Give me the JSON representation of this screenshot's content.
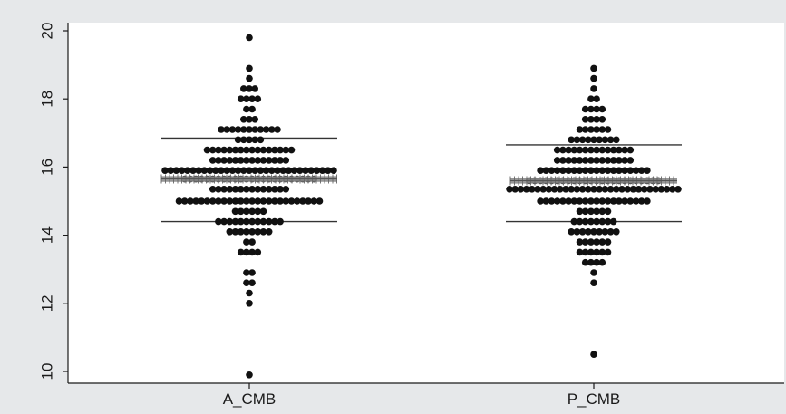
{
  "chart_data": {
    "type": "scatter",
    "subtype": "dot-strip-plot",
    "title": "",
    "xlabel": "",
    "ylabel": "",
    "categories": [
      "A_CMB",
      "P_CMB"
    ],
    "ylim": [
      9.8,
      20.3
    ],
    "yticks": [
      10,
      12,
      14,
      16,
      18,
      20
    ],
    "grid": false,
    "legend": "none",
    "colors": {
      "points": "#111111",
      "background": "#e6e8ea",
      "plot_area": "#ffffff",
      "reference_lines": "#333333",
      "median_band": "#8a8a8a"
    },
    "series": [
      {
        "category": "A_CMB",
        "point_rows": [
          {
            "y": 19.8,
            "n": 1
          },
          {
            "y": 18.9,
            "n": 1
          },
          {
            "y": 18.6,
            "n": 1
          },
          {
            "y": 18.3,
            "n": 3
          },
          {
            "y": 18.0,
            "n": 4
          },
          {
            "y": 17.7,
            "n": 2
          },
          {
            "y": 17.4,
            "n": 3
          },
          {
            "y": 17.1,
            "n": 11
          },
          {
            "y": 16.8,
            "n": 5
          },
          {
            "y": 16.5,
            "n": 16
          },
          {
            "y": 16.2,
            "n": 14
          },
          {
            "y": 15.9,
            "n": 31
          },
          {
            "y": 15.65,
            "n": 24
          },
          {
            "y": 15.35,
            "n": 14
          },
          {
            "y": 15.0,
            "n": 26
          },
          {
            "y": 14.7,
            "n": 6
          },
          {
            "y": 14.4,
            "n": 12
          },
          {
            "y": 14.1,
            "n": 8
          },
          {
            "y": 13.8,
            "n": 2
          },
          {
            "y": 13.5,
            "n": 4
          },
          {
            "y": 12.9,
            "n": 2
          },
          {
            "y": 12.6,
            "n": 2
          },
          {
            "y": 12.3,
            "n": 1
          },
          {
            "y": 12.0,
            "n": 1
          },
          {
            "y": 9.9,
            "n": 1
          }
        ],
        "upper_line": 16.85,
        "median": 15.65,
        "lower_line": 14.4
      },
      {
        "category": "P_CMB",
        "point_rows": [
          {
            "y": 18.9,
            "n": 1
          },
          {
            "y": 18.6,
            "n": 1
          },
          {
            "y": 18.3,
            "n": 1
          },
          {
            "y": 18.0,
            "n": 2
          },
          {
            "y": 17.7,
            "n": 4
          },
          {
            "y": 17.4,
            "n": 4
          },
          {
            "y": 17.1,
            "n": 6
          },
          {
            "y": 16.8,
            "n": 9
          },
          {
            "y": 16.5,
            "n": 14
          },
          {
            "y": 16.2,
            "n": 14
          },
          {
            "y": 15.9,
            "n": 20
          },
          {
            "y": 15.6,
            "n": 24
          },
          {
            "y": 15.35,
            "n": 31
          },
          {
            "y": 15.0,
            "n": 20
          },
          {
            "y": 14.7,
            "n": 6
          },
          {
            "y": 14.4,
            "n": 8
          },
          {
            "y": 14.1,
            "n": 9
          },
          {
            "y": 13.8,
            "n": 6
          },
          {
            "y": 13.5,
            "n": 6
          },
          {
            "y": 13.2,
            "n": 4
          },
          {
            "y": 12.9,
            "n": 1
          },
          {
            "y": 12.6,
            "n": 1
          },
          {
            "y": 10.5,
            "n": 1
          }
        ],
        "upper_line": 16.65,
        "median": 15.6,
        "lower_line": 14.4
      }
    ]
  }
}
